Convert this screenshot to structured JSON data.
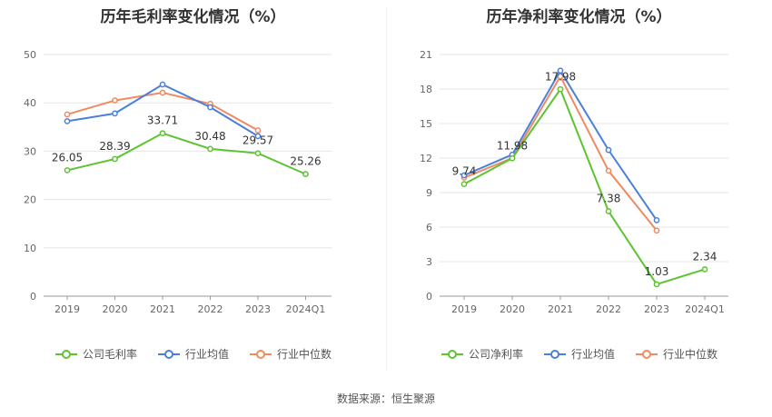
{
  "chart_data": [
    {
      "type": "line",
      "title": "历年毛利率变化情况（%）",
      "categories": [
        "2019",
        "2020",
        "2021",
        "2022",
        "2023",
        "2024Q1"
      ],
      "ylim": [
        0,
        50
      ],
      "yticks": [
        0,
        10,
        20,
        30,
        40,
        50
      ],
      "grid": true,
      "legend_position": "bottom",
      "series": [
        {
          "name": "公司毛利率",
          "color": "#5dc332",
          "values": [
            26.05,
            28.39,
            33.71,
            30.48,
            29.57,
            25.26
          ],
          "labels": [
            "26.05",
            "28.39",
            "33.71",
            "30.48",
            "29.57",
            "25.26"
          ]
        },
        {
          "name": "行业均值",
          "color": "#4a7fdc",
          "values": [
            36.2,
            37.8,
            43.8,
            39.1,
            33.1,
            null
          ]
        },
        {
          "name": "行业中位数",
          "color": "#f08a60",
          "values": [
            37.6,
            40.5,
            42.1,
            39.8,
            34.3,
            null
          ]
        }
      ]
    },
    {
      "type": "line",
      "title": "历年净利率变化情况（%）",
      "categories": [
        "2019",
        "2020",
        "2021",
        "2022",
        "2023",
        "2024Q1"
      ],
      "ylim": [
        0,
        21
      ],
      "yticks": [
        0,
        3,
        6,
        9,
        12,
        15,
        18,
        21
      ],
      "grid": true,
      "legend_position": "bottom",
      "series": [
        {
          "name": "公司净利率",
          "color": "#5dc332",
          "values": [
            9.74,
            11.98,
            17.98,
            7.38,
            1.03,
            2.34
          ],
          "labels": [
            "9.74",
            "11.98",
            "17.98",
            "7.38",
            "1.03",
            "2.34"
          ]
        },
        {
          "name": "行业均值",
          "color": "#4a7fdc",
          "values": [
            10.5,
            12.3,
            19.6,
            12.7,
            6.6,
            null
          ]
        },
        {
          "name": "行业中位数",
          "color": "#f08a60",
          "values": [
            10.3,
            12.0,
            19.1,
            10.9,
            5.7,
            null
          ]
        }
      ]
    }
  ],
  "footer": {
    "source": "数据来源：恒生聚源"
  }
}
